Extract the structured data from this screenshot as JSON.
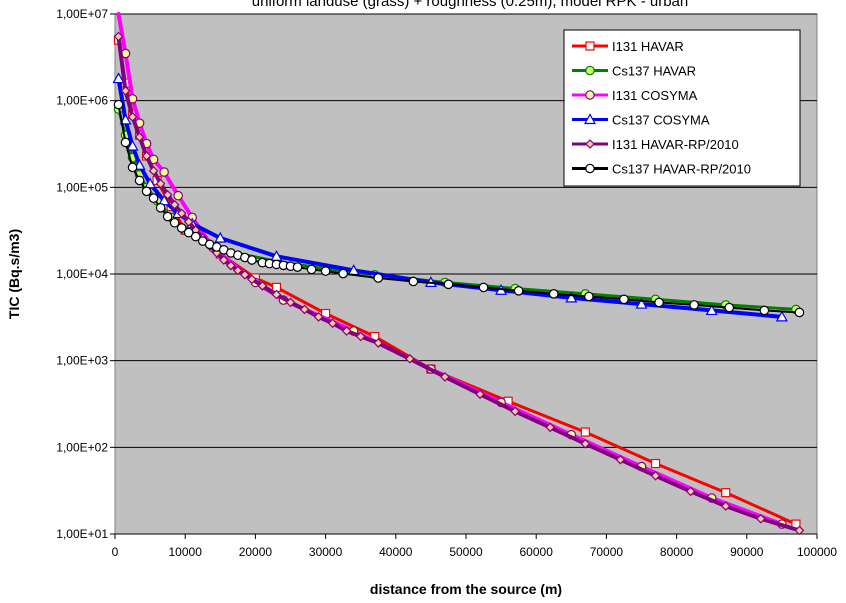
{
  "chart_data": {
    "type": "line",
    "title": "uniform landuse (grass) + roughness (0.25m), model RPK - urban",
    "xlabel": "distance from the source (m)",
    "ylabel": "TIC (Bq.s/m3)",
    "x_scale": "linear",
    "y_scale": "log",
    "xlim": [
      0,
      100000
    ],
    "ylim": [
      10,
      10000000
    ],
    "x_ticks": [
      0,
      10000,
      20000,
      30000,
      40000,
      50000,
      60000,
      70000,
      80000,
      90000,
      100000
    ],
    "x_tick_labels": [
      "0",
      "10000",
      "20000",
      "30000",
      "40000",
      "50000",
      "60000",
      "70000",
      "80000",
      "90000",
      "100000"
    ],
    "y_ticks": [
      10,
      100,
      1000,
      10000,
      100000,
      1000000,
      10000000
    ],
    "y_tick_labels": [
      "1,00E+01",
      "1,00E+02",
      "1,00E+03",
      "1,00E+04",
      "1,00E+05",
      "1,00E+06",
      "1,00E+07"
    ],
    "grid": "horizontal",
    "legend_position": "top-right",
    "plot_background": "#c0c0c0",
    "series": [
      {
        "name": "I131 HAVAR",
        "color": "#ff0000",
        "marker": "square",
        "marker_fill": "#ffffff",
        "x": [
          500,
          1500,
          2500,
          3500,
          4500,
          6000,
          8000,
          10000,
          15000,
          20000,
          23000,
          30000,
          37000,
          45000,
          56000,
          67000,
          77000,
          87000,
          97000
        ],
        "y": [
          5000000,
          1600000,
          700000,
          400000,
          230000,
          120000,
          60000,
          32000,
          17000,
          9000,
          7000,
          3500,
          1900,
          800,
          340,
          150,
          65,
          30,
          13
        ]
      },
      {
        "name": "Cs137 HAVAR",
        "color": "#008000",
        "marker": "circle",
        "marker_fill": "#ccff66",
        "x": [
          500,
          1500,
          2500,
          3500,
          4500,
          6000,
          8000,
          10000,
          15000,
          23000,
          30000,
          37000,
          47000,
          57000,
          67000,
          77000,
          87000,
          97000
        ],
        "y": [
          800000,
          400000,
          220000,
          140000,
          100000,
          70000,
          45000,
          32000,
          19000,
          14000,
          11500,
          9800,
          8000,
          6800,
          5900,
          5100,
          4400,
          3900
        ]
      },
      {
        "name": "I131 COSYMA",
        "color": "#ff00ff",
        "marker": "circle",
        "marker_fill": "#ffff99",
        "x": [
          500,
          1500,
          2500,
          3500,
          4500,
          5500,
          7000,
          9000,
          11000,
          14000,
          20000,
          24000,
          34000,
          45000,
          55000,
          65000,
          75000,
          85000,
          95000
        ],
        "y": [
          12000000,
          3500000,
          1050000,
          550000,
          320000,
          210000,
          150000,
          80000,
          45000,
          20000,
          8000,
          5000,
          2200,
          800,
          330,
          140,
          60,
          26,
          13
        ]
      },
      {
        "name": "Cs137 COSYMA",
        "color": "#0000ff",
        "marker": "triangle",
        "marker_fill": "#ffffff",
        "x": [
          500,
          1500,
          2500,
          3500,
          5000,
          7000,
          9000,
          11000,
          15000,
          23000,
          34000,
          45000,
          55000,
          65000,
          75000,
          85000,
          95000
        ],
        "y": [
          1800000,
          600000,
          300000,
          180000,
          110000,
          70000,
          50000,
          38000,
          26000,
          16000,
          11000,
          8000,
          6500,
          5300,
          4500,
          3800,
          3200
        ]
      },
      {
        "name": "I131 HAVAR-RP/2010",
        "color": "#800080",
        "marker": "diamond",
        "marker_fill": "#ffcc99",
        "x": [
          500,
          1500,
          2500,
          3500,
          4500,
          5500,
          6500,
          7500,
          8500,
          9500,
          10500,
          11500,
          12500,
          13500,
          14500,
          15500,
          16500,
          17500,
          18500,
          19500,
          21000,
          23000,
          25000,
          27000,
          29000,
          31000,
          33000,
          35000,
          37500,
          42000,
          47000,
          52000,
          57000,
          62000,
          67000,
          72000,
          77000,
          82000,
          87000,
          92000,
          97500
        ],
        "y": [
          5500000,
          1300000,
          650000,
          380000,
          230000,
          155000,
          110000,
          82000,
          63000,
          50000,
          40000,
          32000,
          26000,
          21000,
          17500,
          14500,
          12500,
          11000,
          9800,
          8700,
          7300,
          5800,
          4700,
          3900,
          3200,
          2700,
          2200,
          1900,
          1600,
          1050,
          650,
          410,
          260,
          170,
          110,
          72,
          47,
          31,
          21,
          15,
          11
        ]
      },
      {
        "name": "Cs137 HAVAR-RP/2010",
        "color": "#000000",
        "marker": "circle",
        "marker_fill": "#ffffff",
        "x": [
          500,
          1500,
          2500,
          3500,
          4500,
          5500,
          6500,
          7500,
          8500,
          9500,
          10500,
          11500,
          12500,
          13500,
          14500,
          15500,
          16500,
          17500,
          18500,
          19500,
          21000,
          22000,
          23000,
          24000,
          25000,
          26000,
          28000,
          30000,
          32500,
          37500,
          42500,
          47500,
          52500,
          57500,
          62500,
          67500,
          72500,
          77500,
          82500,
          87500,
          92500,
          97500
        ],
        "y": [
          900000,
          330000,
          170000,
          120000,
          90000,
          75000,
          58000,
          46000,
          39000,
          34000,
          30000,
          27000,
          24000,
          22000,
          20500,
          19000,
          17500,
          16500,
          15500,
          14500,
          13500,
          13200,
          12900,
          12600,
          12300,
          12000,
          11300,
          10800,
          10100,
          9000,
          8200,
          7600,
          7000,
          6400,
          5900,
          5500,
          5100,
          4700,
          4400,
          4100,
          3800,
          3600
        ]
      }
    ]
  }
}
